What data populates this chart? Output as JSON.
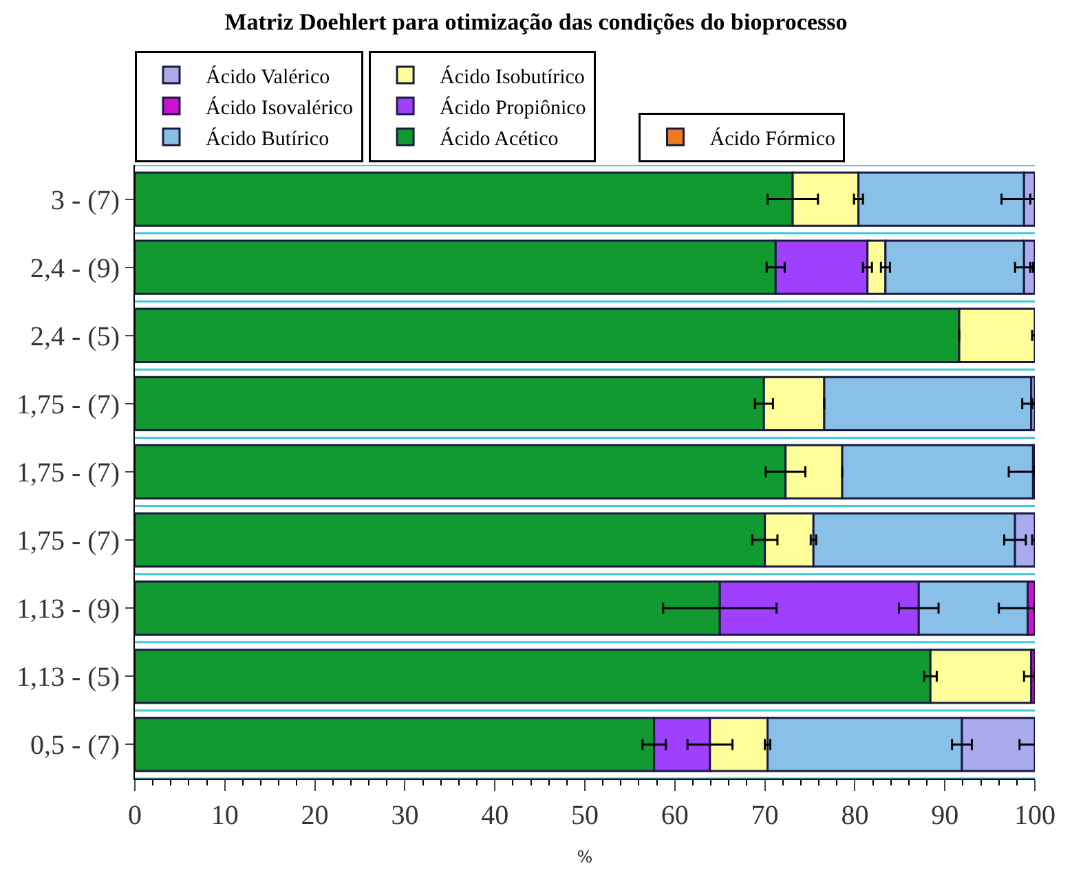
{
  "chart_data": {
    "type": "bar",
    "orientation": "horizontal",
    "stacked": true,
    "title": "Matriz Doehlert para otimização das condições do bioprocesso",
    "xlabel": "%",
    "categories": [
      "3 - (7)",
      "2,4 - (9)",
      "2,4 - (5)",
      "1,75 - (7)",
      "1,75 - (7)",
      "1,75 - (7)",
      "1,13 - (9)",
      "1,13 - (5)",
      "0,5 - (7)"
    ],
    "series": [
      {
        "name": "Ácido Acético",
        "color": "#119a2f",
        "values": [
          73.1,
          71.2,
          91.6,
          69.9,
          72.3,
          70.0,
          65.0,
          88.4,
          57.7
        ],
        "errors": [
          2.8,
          1.0,
          null,
          1.0,
          2.2,
          1.4,
          6.3,
          0.7,
          1.3
        ]
      },
      {
        "name": "Ácido Propiônico",
        "color": "#a040ff",
        "values": [
          null,
          10.2,
          null,
          null,
          null,
          null,
          22.1,
          null,
          6.2
        ],
        "errors": [
          null,
          0.5,
          null,
          null,
          null,
          null,
          2.2,
          null,
          2.5
        ]
      },
      {
        "name": "Ácido Isobutírico",
        "color": "#ffff99",
        "values": [
          7.3,
          2.0,
          8.4,
          6.7,
          6.3,
          5.4,
          null,
          11.2,
          6.4
        ],
        "errors": [
          0.5,
          0.5,
          0.3,
          null,
          null,
          0.3,
          null,
          0.8,
          0.3
        ]
      },
      {
        "name": "Ácido Butírico",
        "color": "#88c0e8",
        "values": [
          18.4,
          15.4,
          null,
          23.0,
          21.2,
          22.4,
          12.1,
          null,
          21.6
        ],
        "errors": [
          2.5,
          1.0,
          null,
          1.0,
          2.7,
          1.2,
          3.2,
          null,
          1.1
        ]
      },
      {
        "name": "Ácido Isovalérico",
        "color": "#d010d0",
        "values": [
          null,
          null,
          null,
          null,
          null,
          null,
          0.8,
          0.4,
          null
        ],
        "errors": [
          null,
          null,
          null,
          null,
          null,
          null,
          null,
          null,
          null
        ]
      },
      {
        "name": "Ácido Valérico",
        "color": "#aaaaee",
        "values": [
          1.2,
          1.2,
          null,
          0.4,
          null,
          2.2,
          null,
          null,
          8.1
        ],
        "errors": [
          0.5,
          0.5,
          null,
          0.3,
          null,
          0.3,
          null,
          null,
          1.7
        ]
      },
      {
        "name": "Ácido Fórmico",
        "color": "#f07820",
        "values": [
          null,
          null,
          null,
          null,
          0.2,
          null,
          null,
          null,
          null
        ],
        "errors": [
          null,
          null,
          null,
          null,
          null,
          null,
          null,
          null,
          null
        ]
      }
    ],
    "xlim": [
      0,
      100
    ],
    "xticks": [
      0,
      10,
      20,
      30,
      40,
      50,
      60,
      70,
      80,
      90,
      100
    ],
    "grid": "y",
    "legend": "top"
  }
}
